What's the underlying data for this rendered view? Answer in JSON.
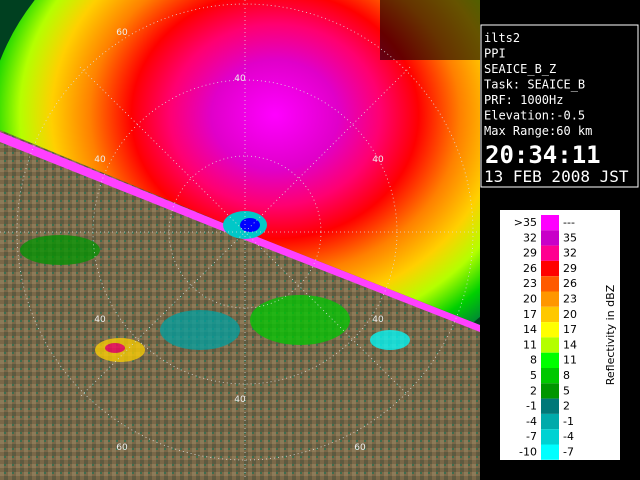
{
  "panel": {
    "lines": [
      "ilts2",
      "PPI",
      "SEAICE_B_Z",
      "Task: SEAICE_B",
      "PRF: 1000Hz",
      "Elevation:-0.5",
      "Max Range:60 km"
    ],
    "time": "20:34:11",
    "date": "13 FEB 2008 JST"
  },
  "legend": {
    "title": "Reflectivity in dBZ",
    "rows": [
      {
        "low": ">35",
        "high": "---",
        "color": "#ff00ff"
      },
      {
        "low": "32",
        "high": "35",
        "color": "#c800c8"
      },
      {
        "low": "29",
        "high": "32",
        "color": "#ff0090"
      },
      {
        "low": "26",
        "high": "29",
        "color": "#ff0000"
      },
      {
        "low": "23",
        "high": "26",
        "color": "#ff5a00"
      },
      {
        "low": "20",
        "high": "23",
        "color": "#ff9600"
      },
      {
        "low": "17",
        "high": "20",
        "color": "#ffc800"
      },
      {
        "low": "14",
        "high": "17",
        "color": "#ffff00"
      },
      {
        "low": "11",
        "high": "14",
        "color": "#b4ff00"
      },
      {
        "low": "8",
        "high": "11",
        "color": "#00ff00"
      },
      {
        "low": "5",
        "high": "8",
        "color": "#00c800"
      },
      {
        "low": "2",
        "high": "5",
        "color": "#009600"
      },
      {
        "low": "-1",
        "high": "2",
        "color": "#007878"
      },
      {
        "low": "-4",
        "high": "-1",
        "color": "#00aaaa"
      },
      {
        "low": "-7",
        "high": "-4",
        "color": "#00d2d2"
      },
      {
        "low": "-10",
        "high": "-7",
        "color": "#00ffff"
      }
    ]
  },
  "map": {
    "ring_labels": [
      "60",
      "40",
      "40",
      "40",
      "40",
      "40",
      "40",
      "60",
      "60"
    ]
  }
}
